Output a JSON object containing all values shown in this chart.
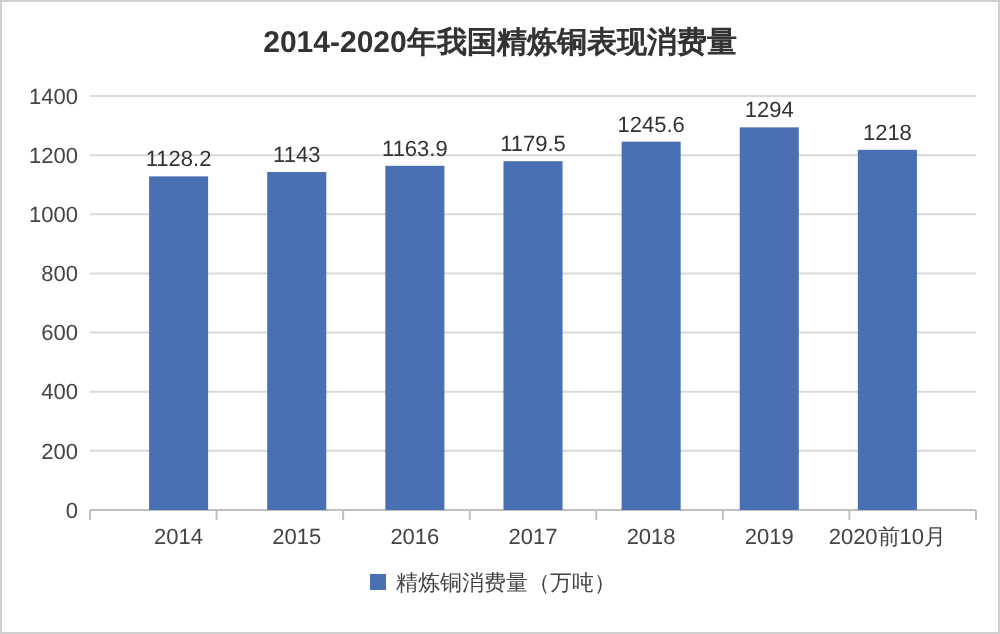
{
  "chart_data": {
    "type": "bar",
    "title": "2014-2020年我国精炼铜表现消费量",
    "categories": [
      "2014",
      "2015",
      "2016",
      "2017",
      "2018",
      "2019",
      "2020前10月"
    ],
    "series": [
      {
        "name": "精炼铜消费量（万吨）",
        "color": "#4a70b4",
        "values": [
          1128.2,
          1143,
          1163.9,
          1179.5,
          1245.6,
          1294,
          1218
        ]
      }
    ],
    "ylim": [
      0,
      1400
    ],
    "yticks": [
      0,
      200,
      400,
      600,
      800,
      1000,
      1200,
      1400
    ],
    "grid": "y",
    "legend": "bottom",
    "data_labels": true
  }
}
